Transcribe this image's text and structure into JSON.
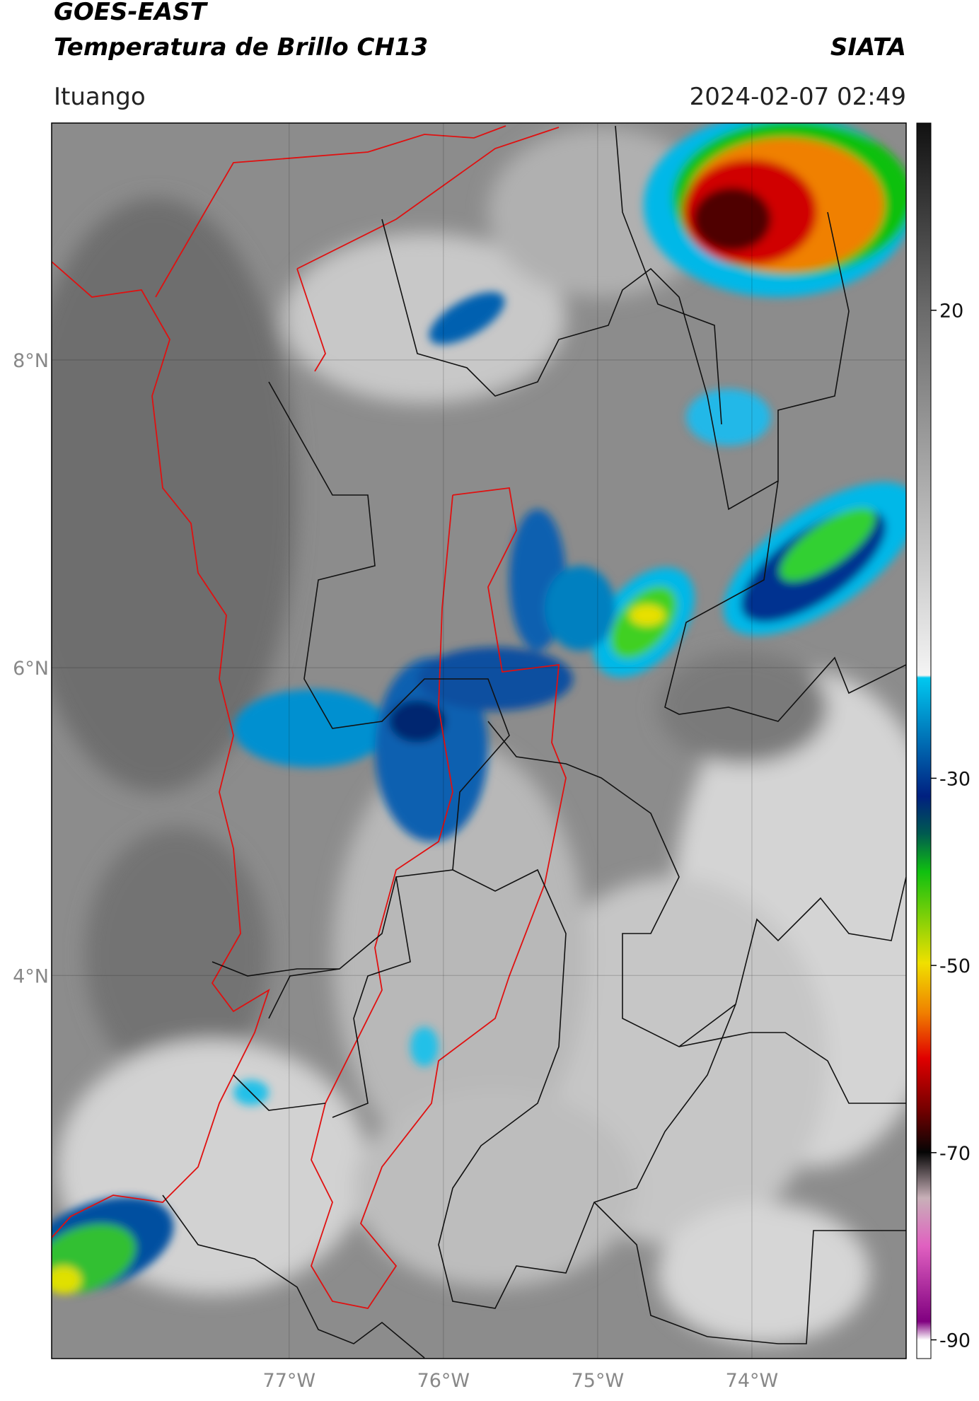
{
  "header": {
    "title_line1": "GOES-EAST",
    "title_line2": "Temperatura de Brillo CH13",
    "source": "SIATA",
    "location": "Ituango",
    "datetime": "2024-02-07 02:49"
  },
  "map": {
    "xlim": [
      -78.54,
      -73.0
    ],
    "ylim": [
      1.51,
      9.54
    ],
    "xticks": [
      {
        "value": -77,
        "label": "77°W"
      },
      {
        "value": -76,
        "label": "76°W"
      },
      {
        "value": -75,
        "label": "75°W"
      },
      {
        "value": -74,
        "label": "74°W"
      }
    ],
    "yticks": [
      {
        "value": 8,
        "label": "8°N"
      },
      {
        "value": 6,
        "label": "6°N"
      },
      {
        "value": 4,
        "label": "4°N"
      }
    ],
    "grid": true,
    "colorbar_lim": [
      -92,
      40
    ],
    "colorbar_ticks": [
      20,
      -30,
      -50,
      -70,
      -90
    ]
  }
}
